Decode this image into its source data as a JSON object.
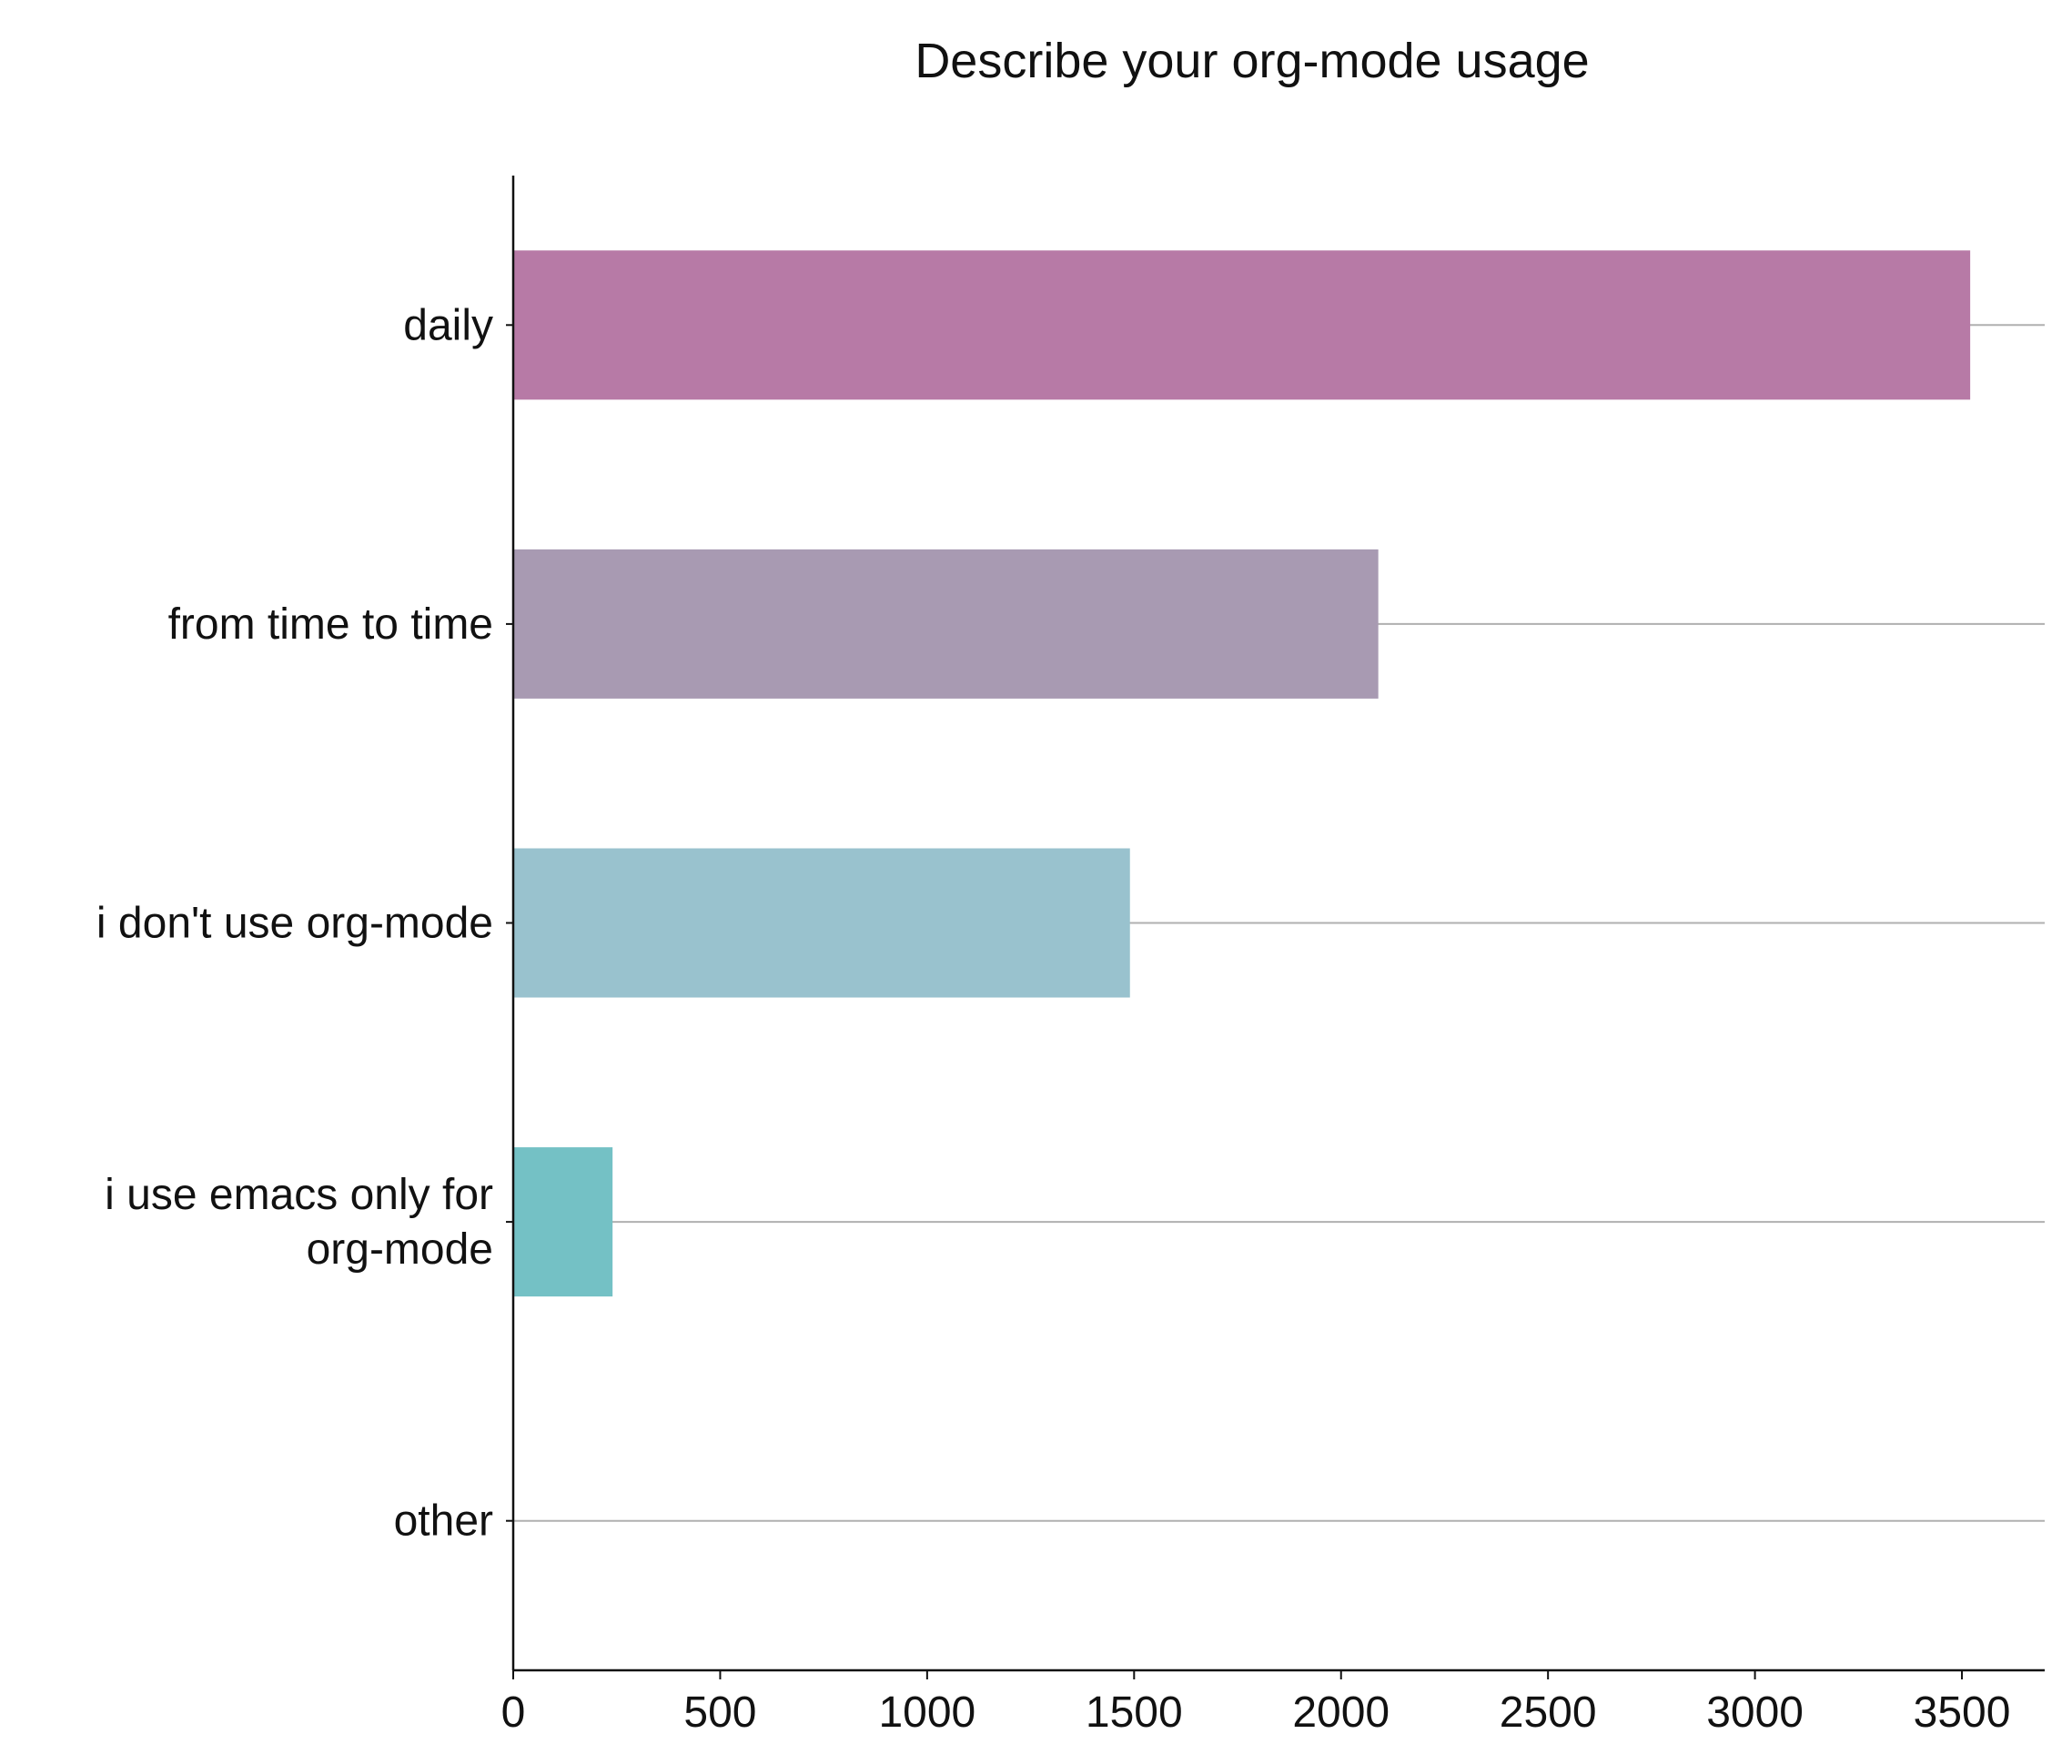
{
  "chart_data": {
    "type": "bar",
    "orientation": "horizontal",
    "title": "Describe your org-mode usage",
    "xlabel": "",
    "ylabel": "",
    "categories": [
      [
        "daily"
      ],
      [
        "from time to time"
      ],
      [
        "i don't use org-mode"
      ],
      [
        "i use emacs only for",
        "org-mode"
      ],
      [
        "other"
      ]
    ],
    "values": [
      3520,
      2090,
      1490,
      240,
      0
    ],
    "colors": [
      "#b77aa6",
      "#a89ab2",
      "#99c2ce",
      "#74c1c5",
      "#74c1c5"
    ],
    "xlim": [
      0,
      3700
    ],
    "xticks": [
      0,
      500,
      1000,
      1500,
      2000,
      2500,
      3000,
      3500
    ],
    "grid": "horizontal lines at category centers",
    "legend": "none"
  }
}
